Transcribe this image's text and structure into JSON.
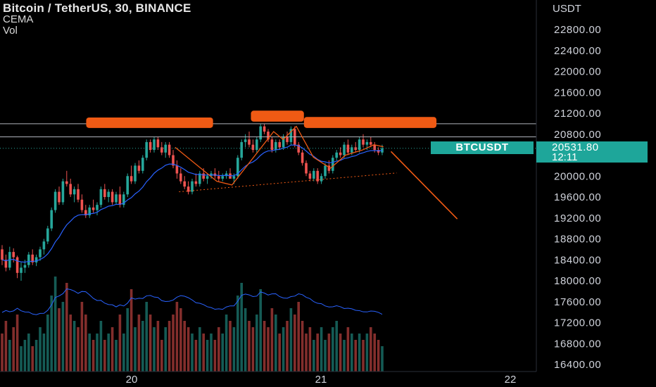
{
  "header": {
    "title": "Bitcoin / TetherUS, 30, BINANCE",
    "indicators": [
      "CEMA",
      "Vol"
    ]
  },
  "axis": {
    "currency": "USDT"
  },
  "price_tag": {
    "symbol": "BTCUSDT",
    "price": "20531.80",
    "countdown": "12:11"
  },
  "colors": {
    "up": "#26a69a",
    "down": "#ef5350",
    "annotation": "#f05a14",
    "ema": "#2962ff",
    "background": "#000000"
  },
  "chart_data": {
    "type": "candlestick",
    "title": "Bitcoin / TetherUS, 30, BINANCE",
    "y_unit": "USDT",
    "ylim": [
      16300,
      23100
    ],
    "y_ticks": [
      22800,
      22400,
      22000,
      21600,
      21200,
      20800,
      20400,
      20000,
      19600,
      19200,
      18800,
      18400,
      18000,
      17600,
      17200,
      16800,
      16400
    ],
    "y_tick_labels": [
      "22800.00",
      "22400.00",
      "22000.00",
      "21600.00",
      "21200.00",
      "20800.00",
      "20400.00",
      "20000.00",
      "19600.00",
      "19200.00",
      "18800.00",
      "18400.00",
      "18000.00",
      "17600.00",
      "17200.00",
      "16800.00",
      "16400.00"
    ],
    "xlim": [
      19.33,
      22.12
    ],
    "x_ticks": [
      20,
      21,
      22
    ],
    "x_tick_labels": [
      "20",
      "21",
      "22"
    ],
    "last_price": 20531.8,
    "resistance_levels": [
      21000,
      20750
    ],
    "support_trend": {
      "from": [
        20.25,
        19700
      ],
      "to": [
        21.4,
        20060
      ]
    },
    "projection": {
      "from": [
        21.37,
        20470
      ],
      "to": [
        21.72,
        19180
      ]
    },
    "pattern_path": [
      [
        20.23,
        20550
      ],
      [
        20.45,
        19900
      ],
      [
        20.53,
        19830
      ],
      [
        20.75,
        20850
      ],
      [
        20.8,
        20700
      ],
      [
        20.87,
        20950
      ],
      [
        20.96,
        20360
      ],
      [
        21.05,
        20150
      ],
      [
        21.13,
        20400
      ],
      [
        21.22,
        20500
      ],
      [
        21.28,
        20600
      ],
      [
        21.33,
        20560
      ]
    ],
    "annotation_boxes": [
      {
        "x": [
          19.76,
          20.43
        ],
        "y": [
          20920,
          21120
        ]
      },
      {
        "x": [
          20.63,
          20.91
        ],
        "y": [
          21040,
          21250
        ]
      },
      {
        "x": [
          20.91,
          21.61
        ],
        "y": [
          20920,
          21130
        ]
      }
    ],
    "ohlc": [
      [
        18600,
        18680,
        18300,
        18400
      ],
      [
        18400,
        18500,
        18180,
        18250
      ],
      [
        18250,
        18650,
        18200,
        18550
      ],
      [
        18550,
        18620,
        18350,
        18450
      ],
      [
        18450,
        18480,
        18050,
        18150
      ],
      [
        18150,
        18350,
        18000,
        18250
      ],
      [
        18250,
        18400,
        18150,
        18300
      ],
      [
        18300,
        18550,
        18250,
        18500
      ],
      [
        18500,
        18600,
        18300,
        18350
      ],
      [
        18350,
        18500,
        18280,
        18450
      ],
      [
        18450,
        18650,
        18380,
        18600
      ],
      [
        18600,
        18800,
        18500,
        18750
      ],
      [
        18750,
        19050,
        18700,
        19000
      ],
      [
        19000,
        19400,
        18950,
        19350
      ],
      [
        19350,
        19750,
        19300,
        19700
      ],
      [
        19700,
        19800,
        19450,
        19500
      ],
      [
        19500,
        19950,
        19450,
        19900
      ],
      [
        19900,
        20100,
        19800,
        19850
      ],
      [
        19850,
        19950,
        19600,
        19650
      ],
      [
        19650,
        19800,
        19500,
        19750
      ],
      [
        19750,
        19850,
        19500,
        19550
      ],
      [
        19550,
        19650,
        19300,
        19350
      ],
      [
        19350,
        19450,
        19200,
        19250
      ],
      [
        19250,
        19450,
        19200,
        19400
      ],
      [
        19400,
        19550,
        19300,
        19350
      ],
      [
        19350,
        19500,
        19250,
        19450
      ],
      [
        19450,
        19800,
        19400,
        19750
      ],
      [
        19750,
        19850,
        19550,
        19600
      ],
      [
        19600,
        19750,
        19500,
        19700
      ],
      [
        19700,
        19750,
        19450,
        19500
      ],
      [
        19500,
        19700,
        19450,
        19650
      ],
      [
        19650,
        19800,
        19400,
        19450
      ],
      [
        19450,
        19700,
        19400,
        19650
      ],
      [
        19650,
        20050,
        19600,
        20000
      ],
      [
        20000,
        20200,
        19850,
        19900
      ],
      [
        19900,
        20250,
        19850,
        20200
      ],
      [
        20200,
        20300,
        20050,
        20100
      ],
      [
        20100,
        20400,
        20050,
        20350
      ],
      [
        20350,
        20700,
        20300,
        20650
      ],
      [
        20650,
        20700,
        20450,
        20500
      ],
      [
        20500,
        20750,
        20450,
        20700
      ],
      [
        20700,
        20750,
        20500,
        20550
      ],
      [
        20550,
        20650,
        20400,
        20450
      ],
      [
        20450,
        20650,
        20350,
        20600
      ],
      [
        20600,
        20650,
        20350,
        20400
      ],
      [
        20400,
        20500,
        20150,
        20200
      ],
      [
        20200,
        20300,
        19950,
        20050
      ],
      [
        20050,
        20150,
        19850,
        19900
      ],
      [
        19900,
        20000,
        19750,
        19800
      ],
      [
        19800,
        19900,
        19650,
        19700
      ],
      [
        19700,
        19950,
        19650,
        19900
      ],
      [
        19900,
        20050,
        19800,
        19850
      ],
      [
        19850,
        20100,
        19800,
        20050
      ],
      [
        20050,
        20150,
        19900,
        19950
      ],
      [
        19950,
        20050,
        19850,
        20000
      ],
      [
        20000,
        20100,
        19950,
        20050
      ],
      [
        20050,
        20150,
        19950,
        20000
      ],
      [
        20000,
        20100,
        19900,
        19950
      ],
      [
        19950,
        20050,
        19900,
        20000
      ],
      [
        20000,
        20100,
        19950,
        20050
      ],
      [
        20050,
        20150,
        19950,
        19950
      ],
      [
        19950,
        20050,
        19850,
        20000
      ],
      [
        20000,
        20400,
        19950,
        20350
      ],
      [
        20350,
        20700,
        20300,
        20650
      ],
      [
        20650,
        20800,
        20550,
        20700
      ],
      [
        20700,
        20850,
        20550,
        20600
      ],
      [
        20600,
        20700,
        20450,
        20500
      ],
      [
        20500,
        20750,
        20450,
        20700
      ],
      [
        20700,
        21000,
        20650,
        20950
      ],
      [
        20950,
        21000,
        20800,
        20850
      ],
      [
        20850,
        20900,
        20650,
        20700
      ],
      [
        20700,
        20750,
        20450,
        20500
      ],
      [
        20500,
        20700,
        20450,
        20650
      ],
      [
        20650,
        20700,
        20500,
        20550
      ],
      [
        20550,
        20800,
        20500,
        20750
      ],
      [
        20750,
        20850,
        20600,
        20650
      ],
      [
        20650,
        20950,
        20600,
        20900
      ],
      [
        20900,
        20950,
        20550,
        20600
      ],
      [
        20600,
        20650,
        20400,
        20450
      ],
      [
        20450,
        20500,
        20200,
        20250
      ],
      [
        20250,
        20300,
        20000,
        20050
      ],
      [
        20050,
        20100,
        19900,
        19950
      ],
      [
        19950,
        20150,
        19900,
        20100
      ],
      [
        20100,
        20150,
        19850,
        19900
      ],
      [
        19900,
        20050,
        19850,
        20000
      ],
      [
        20000,
        20250,
        19950,
        20200
      ],
      [
        20200,
        20300,
        20050,
        20100
      ],
      [
        20100,
        20400,
        20050,
        20350
      ],
      [
        20350,
        20500,
        20300,
        20450
      ],
      [
        20450,
        20550,
        20350,
        20400
      ],
      [
        20400,
        20650,
        20350,
        20600
      ],
      [
        20600,
        20700,
        20400,
        20450
      ],
      [
        20450,
        20600,
        20400,
        20550
      ],
      [
        20550,
        20650,
        20450,
        20500
      ],
      [
        20500,
        20750,
        20450,
        20700
      ],
      [
        20700,
        20800,
        20550,
        20600
      ],
      [
        20600,
        20700,
        20500,
        20650
      ],
      [
        20650,
        20750,
        20550,
        20600
      ],
      [
        20600,
        20650,
        20450,
        20500
      ],
      [
        20500,
        20550,
        20400,
        20450
      ],
      [
        20450,
        20600,
        20400,
        20532
      ]
    ],
    "volume": [
      6,
      8,
      5,
      7,
      9,
      4,
      5,
      6,
      4,
      5,
      7,
      6,
      9,
      12,
      15,
      10,
      11,
      14,
      9,
      8,
      7,
      11,
      9,
      6,
      5,
      6,
      8,
      5,
      6,
      7,
      5,
      9,
      6,
      10,
      13,
      7,
      9,
      8,
      11,
      9,
      7,
      8,
      5,
      7,
      8,
      9,
      11,
      10,
      8,
      7,
      6,
      5,
      7,
      6,
      5,
      6,
      5,
      7,
      6,
      9,
      8,
      7,
      12,
      14,
      10,
      8,
      7,
      9,
      13,
      8,
      7,
      10,
      9,
      6,
      7,
      8,
      10,
      9,
      11,
      8,
      6,
      7,
      5,
      6,
      7,
      5,
      6,
      7,
      8,
      6,
      5,
      7,
      6,
      5,
      6,
      5,
      6,
      7,
      6,
      5,
      4
    ]
  }
}
